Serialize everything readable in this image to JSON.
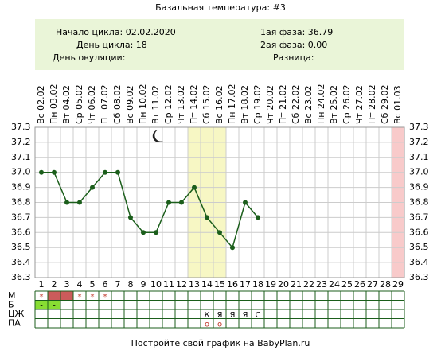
{
  "chart_data": {
    "type": "line",
    "title": "Базальная температура: #3",
    "info_left": [
      "Начало цикла: 02.02.2020",
      "День цикла: 18",
      "День овуляции:"
    ],
    "info_right": [
      "1ая фаза: 36.79",
      "2ая фаза: 0.00",
      "Разница:"
    ],
    "categories": [
      "Вс 02.02",
      "Пн 03.02",
      "Вт 04.02",
      "Ср 05.02",
      "Чт 06.02",
      "Пт 07.02",
      "Сб 08.02",
      "Вс 09.02",
      "Пн 10.02",
      "Вт 11.02",
      "Ср 12.02",
      "Чт 13.02",
      "Пт 14.02",
      "Сб 15.02",
      "Вс 16.02",
      "Пн 17.02",
      "Вт 18.02",
      "Ср 19.02",
      "Чт 20.02",
      "Пт 21.02",
      "Сб 22.02",
      "Вс 23.02",
      "Пн 24.02",
      "Вт 25.02",
      "Ср 26.02",
      "Чт 27.02",
      "Пт 28.02",
      "Сб 29.02",
      "Вс 01.03"
    ],
    "days": [
      1,
      2,
      3,
      4,
      5,
      6,
      7,
      8,
      9,
      10,
      11,
      12,
      13,
      14,
      15,
      16,
      17,
      18,
      19,
      20,
      21,
      22,
      23,
      24,
      25,
      26,
      27,
      28,
      29
    ],
    "series": [
      {
        "color": "#1b5e1b",
        "values": [
          37.0,
          37.0,
          36.8,
          36.8,
          36.9,
          37.0,
          37.0,
          36.7,
          36.6,
          36.6,
          36.8,
          36.8,
          36.9,
          36.7,
          36.6,
          36.5,
          36.8,
          36.7,
          null,
          null,
          null,
          null,
          null,
          null,
          null,
          null,
          null,
          null,
          null
        ]
      }
    ],
    "ylim": [
      36.3,
      37.3
    ],
    "yticks": [
      36.3,
      36.4,
      36.5,
      36.6,
      36.7,
      36.8,
      36.9,
      {
        "value": 37.0,
        "label": "37.0"
      },
      37.1,
      37.2,
      37.3
    ],
    "grid": true,
    "highlight_days": [
      {
        "from": 13,
        "to": 15,
        "color": "#f7f7c4"
      },
      {
        "from": 29,
        "to": 29,
        "color": "#f8caca"
      }
    ],
    "table": [
      {
        "label": "М",
        "cells": [
          {
            "day": 1,
            "text": "*"
          },
          {
            "day": 2,
            "fill": "#cc5b5b"
          },
          {
            "day": 3,
            "fill": "#cc5b5b"
          },
          {
            "day": 4,
            "text": "*"
          },
          {
            "day": 5,
            "text": "*"
          },
          {
            "day": 6,
            "text": "*"
          }
        ]
      },
      {
        "label": "Б",
        "cells": [
          {
            "day": 1,
            "text": "-",
            "fill": "#88dd33"
          },
          {
            "day": 2,
            "text": "-",
            "fill": "#88dd33"
          }
        ]
      },
      {
        "label": "ЦЖ",
        "cells": [
          {
            "day": 14,
            "text": "К"
          },
          {
            "day": 15,
            "text": "Я"
          },
          {
            "day": 16,
            "text": "Я"
          },
          {
            "day": 17,
            "text": "Я"
          },
          {
            "day": 18,
            "text": "С"
          }
        ]
      },
      {
        "label": "ПА",
        "cells": [
          {
            "day": 14,
            "text": "o"
          },
          {
            "day": 15,
            "text": "o"
          }
        ]
      }
    ],
    "footer": "Постройте свой график на BabyPlan.ru"
  }
}
